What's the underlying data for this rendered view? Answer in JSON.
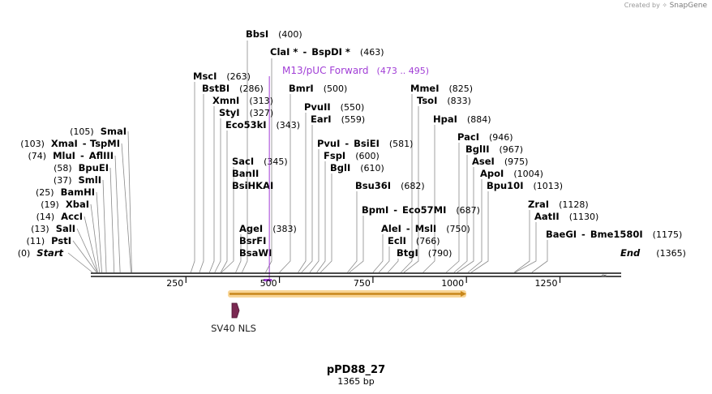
{
  "credit": {
    "prefix": "Created by",
    "brand": "SnapGene"
  },
  "plasmid": {
    "name": "pPD88_27",
    "length_label": "1365 bp",
    "length_bp": 1365
  },
  "axis_ticks": [
    "250",
    "500",
    "750",
    "1000",
    "1250"
  ],
  "primer": {
    "name": "M13/pUC Forward",
    "range": "(473 .. 495)",
    "start": 473,
    "end": 495,
    "color": "#a13ed6"
  },
  "orf": {
    "start": 353,
    "end": 1003,
    "color": "#f6b94f"
  },
  "feature": {
    "name": "SV40 NLS",
    "start": 362,
    "end": 383,
    "color": "#7a2952"
  },
  "sites": [
    {
      "name": "Start",
      "pos": "(0)",
      "bp": 0
    },
    {
      "name": "PstI",
      "pos": "(11)",
      "bp": 11
    },
    {
      "name": "SalI",
      "pos": "(13)",
      "bp": 13
    },
    {
      "name": "AccI",
      "pos": "(14)",
      "bp": 14
    },
    {
      "name": "XbaI",
      "pos": "(19)",
      "bp": 19
    },
    {
      "name": "BamHI",
      "pos": "(25)",
      "bp": 25
    },
    {
      "name": "SmlI",
      "pos": "(37)",
      "bp": 37
    },
    {
      "name": "BpuEI",
      "pos": "(58)",
      "bp": 58
    },
    {
      "name": "MluI",
      "name2": "AflIII",
      "pos": "(74)",
      "bp": 74
    },
    {
      "name": "XmaI",
      "name2": "TspMI",
      "pos": "(103)",
      "bp": 103
    },
    {
      "name": "SmaI",
      "pos": "(105)",
      "bp": 105
    },
    {
      "name": "MscI",
      "pos": "(263)",
      "bp": 263
    },
    {
      "name": "BstBI",
      "pos": "(286)",
      "bp": 286
    },
    {
      "name": "XmnI",
      "pos": "(313)",
      "bp": 313
    },
    {
      "name": "StyI",
      "pos": "(327)",
      "bp": 327
    },
    {
      "name": "Eco53kI",
      "pos": "(343)",
      "bp": 343
    },
    {
      "name": "SacI",
      "pos": "(345)",
      "bp": 345
    },
    {
      "name": "BanII",
      "pos": "",
      "bp": 345
    },
    {
      "name": "BsiHKAI",
      "pos": "",
      "bp": 345
    },
    {
      "name": "AgeI",
      "pos": "(383)",
      "bp": 383
    },
    {
      "name": "BsrFI",
      "pos": "",
      "bp": 383
    },
    {
      "name": "BsaWI",
      "pos": "",
      "bp": 383
    },
    {
      "name": "BbsI",
      "pos": "(400)",
      "bp": 400
    },
    {
      "name": "ClaI *",
      "name2": "BspDI *",
      "pos": "(463)",
      "bp": 463
    },
    {
      "name": "BmrI",
      "pos": "(500)",
      "bp": 500
    },
    {
      "name": "PvuII",
      "pos": "(550)",
      "bp": 550
    },
    {
      "name": "EarI",
      "pos": "(559)",
      "bp": 559
    },
    {
      "name": "PvuI",
      "name2": "BsiEI",
      "pos": "(581)",
      "bp": 581
    },
    {
      "name": "FspI",
      "pos": "(600)",
      "bp": 600
    },
    {
      "name": "BglI",
      "pos": "(610)",
      "bp": 610
    },
    {
      "name": "Bsu36I",
      "pos": "(682)",
      "bp": 682
    },
    {
      "name": "BpmI",
      "name2": "Eco57MI",
      "pos": "(687)",
      "bp": 687
    },
    {
      "name": "AleI",
      "name2": "MslI",
      "pos": "(750)",
      "bp": 750
    },
    {
      "name": "EclI",
      "pos": "(766)",
      "bp": 766
    },
    {
      "name": "BtgI",
      "pos": "(790)",
      "bp": 790
    },
    {
      "name": "MmeI",
      "pos": "(825)",
      "bp": 825
    },
    {
      "name": "TsoI",
      "pos": "(833)",
      "bp": 833
    },
    {
      "name": "HpaI",
      "pos": "(884)",
      "bp": 884
    },
    {
      "name": "PacI",
      "pos": "(946)",
      "bp": 946
    },
    {
      "name": "BglII",
      "pos": "(967)",
      "bp": 967
    },
    {
      "name": "AseI",
      "pos": "(975)",
      "bp": 975
    },
    {
      "name": "ApoI",
      "pos": "(1004)",
      "bp": 1004
    },
    {
      "name": "Bpu10I",
      "pos": "(1013)",
      "bp": 1013
    },
    {
      "name": "ZraI",
      "pos": "(1128)",
      "bp": 1128
    },
    {
      "name": "AatII",
      "pos": "(1130)",
      "bp": 1130
    },
    {
      "name": "BaeGI",
      "name2": "Bme1580I",
      "pos": "(1175)",
      "bp": 1175
    },
    {
      "name": "End",
      "pos": "(1365)",
      "bp": 1365
    }
  ]
}
